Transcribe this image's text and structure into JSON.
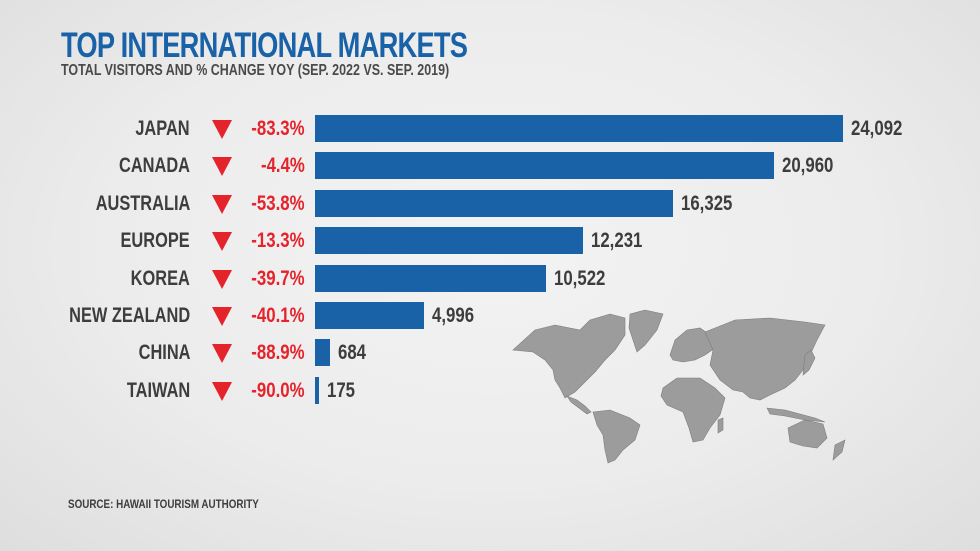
{
  "header": {
    "title": "TOP INTERNATIONAL MARKETS",
    "subtitle": "TOTAL VISITORS AND % CHANGE YOY (SEP. 2022 VS. SEP. 2019)"
  },
  "rows": [
    {
      "label": "JAPAN",
      "pct": "-83.3%",
      "value": "24,092"
    },
    {
      "label": "CANADA",
      "pct": "-4.4%",
      "value": "20,960"
    },
    {
      "label": "AUSTRALIA",
      "pct": "-53.8%",
      "value": "16,325"
    },
    {
      "label": "EUROPE",
      "pct": "-13.3%",
      "value": "12,231"
    },
    {
      "label": "KOREA",
      "pct": "-39.7%",
      "value": "10,522"
    },
    {
      "label": "NEW ZEALAND",
      "pct": "-40.1%",
      "value": "4,996"
    },
    {
      "label": "CHINA",
      "pct": "-88.9%",
      "value": "684"
    },
    {
      "label": "TAIWAN",
      "pct": "-90.0%",
      "value": "175"
    }
  ],
  "footer": {
    "source": "SOURCE: HAWAII TOURISM AUTHORITY"
  },
  "colors": {
    "bar": "#1a62a8",
    "title": "#1a62a8",
    "decline": "#e5232b",
    "text": "#3d3d3d",
    "map": "#9a9a9a"
  },
  "icons": {
    "decline": "triangle-down-icon",
    "map": "world-map-icon"
  },
  "chart_data": {
    "type": "bar",
    "orientation": "horizontal",
    "title": "TOP INTERNATIONAL MARKETS",
    "subtitle": "TOTAL VISITORS AND % CHANGE YOY (SEP. 2022 VS. SEP. 2019)",
    "categories": [
      "JAPAN",
      "CANADA",
      "AUSTRALIA",
      "EUROPE",
      "KOREA",
      "NEW ZEALAND",
      "CHINA",
      "TAIWAN"
    ],
    "series": [
      {
        "name": "Total visitors (Sep. 2022)",
        "values": [
          24092,
          20960,
          16325,
          12231,
          10522,
          4996,
          684,
          175
        ]
      },
      {
        "name": "% change YoY vs Sep. 2019",
        "values": [
          -83.3,
          -4.4,
          -53.8,
          -13.3,
          -39.7,
          -40.1,
          -88.9,
          -90.0
        ]
      }
    ],
    "xlabel": "",
    "ylabel": "",
    "grid": false,
    "legend": "none",
    "data_labels": true,
    "annotations": [
      "SOURCE: HAWAII TOURISM AUTHORITY"
    ]
  }
}
